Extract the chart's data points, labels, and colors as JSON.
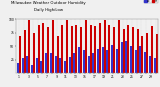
{
  "title": "Milwaukee Weather Outdoor Humidity",
  "subtitle": "Daily High/Low",
  "high_values": [
    68,
    80,
    98,
    75,
    90,
    92,
    85,
    98,
    68,
    90,
    98,
    88,
    90,
    85,
    98,
    90,
    88,
    92,
    98,
    90,
    85,
    98,
    82,
    90,
    85,
    82,
    68,
    75,
    88,
    72
  ],
  "low_values": [
    18,
    28,
    32,
    15,
    28,
    22,
    38,
    38,
    32,
    28,
    22,
    30,
    38,
    48,
    42,
    32,
    38,
    45,
    48,
    42,
    52,
    45,
    58,
    60,
    50,
    42,
    50,
    40,
    32,
    28
  ],
  "x_labels": [
    "1",
    "2",
    "3",
    "4",
    "5",
    "6",
    "7",
    "8",
    "9",
    "10",
    "11",
    "12",
    "13",
    "14",
    "15",
    "16",
    "17",
    "18",
    "19",
    "20",
    "21",
    "22",
    "23",
    "24",
    "25",
    "26",
    "27",
    "28",
    "29",
    "30"
  ],
  "high_color": "#cc0000",
  "low_color": "#3333cc",
  "background_color": "#f0f0f0",
  "ylim": [
    0,
    100
  ],
  "y_ticks": [
    25,
    50,
    75,
    100
  ],
  "legend_high": "Hi",
  "legend_low": "Lo"
}
